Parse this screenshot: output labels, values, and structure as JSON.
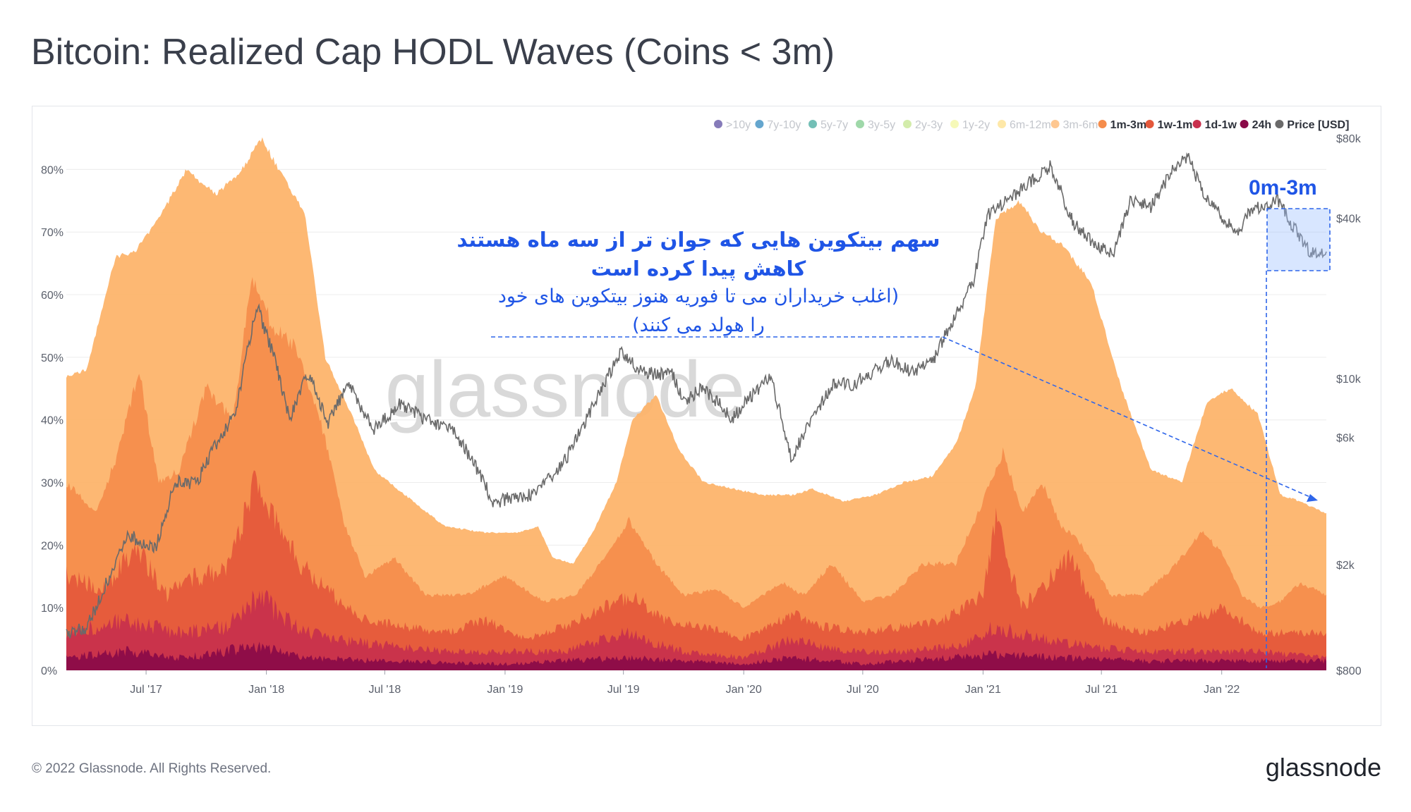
{
  "title": "Bitcoin: Realized Cap HODL Waves (Coins < 3m)",
  "footer": "© 2022 Glassnode. All Rights Reserved.",
  "brand": "glassnode",
  "watermark": "glassnode",
  "legend": [
    {
      "label": ">10y",
      "color": "#5e4fa2",
      "active": false
    },
    {
      "label": "7y-10y",
      "color": "#3288bd",
      "active": false
    },
    {
      "label": "5y-7y",
      "color": "#44a99d",
      "active": false
    },
    {
      "label": "3y-5y",
      "color": "#7fcb8c",
      "active": false
    },
    {
      "label": "2y-3y",
      "color": "#c4e68f",
      "active": false
    },
    {
      "label": "1y-2y",
      "color": "#f3f7a0",
      "active": false
    },
    {
      "label": "6m-12m",
      "color": "#fee08b",
      "active": false
    },
    {
      "label": "3m-6m",
      "color": "#fdb46c",
      "active": false
    },
    {
      "label": "1m-3m",
      "color": "#f58c4b",
      "active": true
    },
    {
      "label": "1w-1m",
      "color": "#e4583b",
      "active": true
    },
    {
      "label": "1d-1w",
      "color": "#c8304d",
      "active": true
    },
    {
      "label": "24h",
      "color": "#8a0a48",
      "active": true
    },
    {
      "label": "Price [USD]",
      "color": "#6a6a6a",
      "active": true
    }
  ],
  "annotation": {
    "box_label": "0m-3m",
    "line1": "سهم بیتکوین هایی که جوان تر از سه ماه هستند",
    "line2": "کاهش پیدا کرده است",
    "line3": "(اغلب خریداران می تا فوریه هنوز بیتکوین های خود",
    "line4": "را هولد می کنند)"
  },
  "chart_data": {
    "type": "area",
    "x_tick_labels": [
      "Jul '17",
      "Jan '18",
      "Jul '18",
      "Jan '19",
      "Jul '19",
      "Jan '20",
      "Jul '20",
      "Jan '21",
      "Jul '21",
      "Jan '22"
    ],
    "x_tick_dates": [
      "2017-07-01",
      "2018-01-01",
      "2018-07-01",
      "2019-01-01",
      "2019-07-01",
      "2020-01-01",
      "2020-07-01",
      "2021-01-01",
      "2021-07-01",
      "2022-01-01"
    ],
    "x_range": [
      "2017-03-01",
      "2022-06-10"
    ],
    "y_left": {
      "ticks": [
        "0%",
        "10%",
        "20%",
        "30%",
        "40%",
        "50%",
        "60%",
        "70%",
        "80%"
      ],
      "range": [
        0,
        85
      ]
    },
    "y_right": {
      "ticks": [
        "$800",
        "$2k",
        "$6k",
        "$10k",
        "$40k",
        "$80k"
      ],
      "tick_values": [
        800,
        2000,
        6000,
        10000,
        40000,
        80000
      ],
      "scale": "log",
      "range": [
        800,
        80000
      ]
    },
    "series": [
      {
        "name": "3m-6m",
        "color": "#fdb46c",
        "dates": [
          "2017-03-01",
          "2017-04-01",
          "2017-05-15",
          "2017-06-15",
          "2017-07-20",
          "2017-09-01",
          "2017-10-15",
          "2017-11-25",
          "2017-12-25",
          "2018-01-25",
          "2018-03-01",
          "2018-04-01",
          "2018-05-15",
          "2018-06-15",
          "2018-08-01",
          "2018-10-01",
          "2018-12-01",
          "2019-01-20",
          "2019-02-20",
          "2019-03-15",
          "2019-04-15",
          "2019-05-15",
          "2019-06-20",
          "2019-07-15",
          "2019-08-20",
          "2019-09-25",
          "2019-11-01",
          "2019-12-15",
          "2020-02-01",
          "2020-03-15",
          "2020-04-15",
          "2020-06-01",
          "2020-07-20",
          "2020-09-01",
          "2020-10-15",
          "2020-11-20",
          "2020-12-20",
          "2021-01-20",
          "2021-02-25",
          "2021-04-01",
          "2021-05-01",
          "2021-06-15",
          "2021-08-01",
          "2021-09-15",
          "2021-11-01",
          "2021-12-10",
          "2022-01-15",
          "2022-02-25",
          "2022-04-01",
          "2022-05-01",
          "2022-06-10"
        ],
        "values": [
          47,
          48,
          66,
          67,
          72,
          80,
          76,
          80,
          85,
          79,
          73,
          50,
          40,
          32,
          28,
          23,
          22,
          22,
          23,
          18,
          17,
          22,
          30,
          40,
          44,
          35,
          30,
          29,
          28,
          28,
          29,
          27,
          28,
          30,
          31,
          36,
          45,
          72,
          75,
          70,
          68,
          62,
          45,
          32,
          30,
          43,
          45,
          41,
          28,
          27,
          25
        ]
      },
      {
        "name": "1m-3m",
        "color": "#f58c4b",
        "dates": [
          "2017-03-01",
          "2017-04-15",
          "2017-05-20",
          "2017-06-20",
          "2017-07-20",
          "2017-08-20",
          "2017-10-01",
          "2017-11-10",
          "2017-12-10",
          "2018-01-10",
          "2018-02-10",
          "2018-03-20",
          "2018-05-01",
          "2018-06-01",
          "2018-07-15",
          "2018-09-01",
          "2018-11-01",
          "2019-01-01",
          "2019-03-01",
          "2019-04-20",
          "2019-06-01",
          "2019-07-10",
          "2019-08-20",
          "2019-10-01",
          "2019-11-20",
          "2020-01-01",
          "2020-03-01",
          "2020-04-01",
          "2020-05-15",
          "2020-07-01",
          "2020-08-15",
          "2020-10-01",
          "2020-11-20",
          "2021-01-05",
          "2021-02-01",
          "2021-03-01",
          "2021-04-01",
          "2021-05-01",
          "2021-06-01",
          "2021-07-15",
          "2021-09-01",
          "2021-10-15",
          "2021-12-01",
          "2022-01-01",
          "2022-02-01",
          "2022-03-01",
          "2022-04-01",
          "2022-05-01",
          "2022-06-10"
        ],
        "values": [
          30,
          25,
          35,
          48,
          30,
          32,
          45,
          40,
          63,
          55,
          52,
          42,
          23,
          15,
          18,
          12,
          12,
          15,
          11,
          12,
          18,
          24,
          17,
          12,
          13,
          10,
          14,
          12,
          17,
          11,
          12,
          17,
          17,
          28,
          35,
          25,
          30,
          23,
          20,
          12,
          12,
          16,
          22,
          19,
          12,
          10,
          11,
          14,
          12
        ]
      },
      {
        "name": "1w-1m",
        "color": "#e4583b",
        "dates": [
          "2017-03-01",
          "2017-05-01",
          "2017-06-15",
          "2017-08-01",
          "2017-09-15",
          "2017-11-01",
          "2017-12-15",
          "2018-01-15",
          "2018-02-15",
          "2018-04-01",
          "2018-06-01",
          "2018-08-01",
          "2018-10-01",
          "2018-12-01",
          "2019-02-01",
          "2019-04-01",
          "2019-06-01",
          "2019-07-15",
          "2019-09-01",
          "2019-11-01",
          "2020-01-01",
          "2020-03-15",
          "2020-05-01",
          "2020-07-01",
          "2020-09-01",
          "2020-11-01",
          "2021-01-01",
          "2021-01-20",
          "2021-03-01",
          "2021-05-15",
          "2021-07-01",
          "2021-09-01",
          "2021-11-15",
          "2022-01-01",
          "2022-03-01",
          "2022-05-01",
          "2022-06-10"
        ],
        "values": [
          15,
          13,
          20,
          12,
          15,
          16,
          30,
          24,
          18,
          13,
          8,
          7,
          6,
          8,
          5,
          7,
          10,
          12,
          8,
          7,
          5,
          9,
          7,
          6,
          7,
          8,
          12,
          24,
          10,
          18,
          8,
          6,
          8,
          10,
          6,
          6,
          6
        ]
      },
      {
        "name": "1d-1w",
        "color": "#c8304d",
        "dates": [
          "2017-03-01",
          "2017-06-01",
          "2017-08-15",
          "2017-11-01",
          "2017-12-20",
          "2018-02-01",
          "2018-04-01",
          "2018-07-01",
          "2018-10-01",
          "2019-01-01",
          "2019-04-01",
          "2019-07-01",
          "2019-10-01",
          "2020-01-01",
          "2020-03-15",
          "2020-06-01",
          "2020-09-01",
          "2020-12-01",
          "2021-01-20",
          "2021-04-01",
          "2021-06-01",
          "2021-09-01",
          "2021-12-01",
          "2022-03-01",
          "2022-06-10"
        ],
        "values": [
          6,
          8,
          6,
          7,
          12,
          8,
          5,
          4,
          3,
          3,
          3,
          6,
          3,
          2,
          5,
          3,
          3,
          4,
          7,
          5,
          4,
          3,
          3,
          3,
          2
        ]
      },
      {
        "name": "24h",
        "color": "#8a0a48",
        "dates": [
          "2017-03-01",
          "2017-06-01",
          "2017-09-01",
          "2017-12-20",
          "2018-03-01",
          "2018-07-01",
          "2019-01-01",
          "2019-07-01",
          "2020-01-01",
          "2020-03-15",
          "2020-07-01",
          "2021-01-15",
          "2021-05-01",
          "2021-09-01",
          "2022-01-01",
          "2022-06-10"
        ],
        "values": [
          2,
          3,
          2,
          4,
          2,
          1.5,
          1,
          2,
          1,
          2,
          1,
          2.5,
          2,
          1.5,
          1.5,
          1.5
        ]
      },
      {
        "name": "Price [USD]",
        "color": "#6a6a6a",
        "axis": "right",
        "dates": [
          "2017-03-01",
          "2017-04-01",
          "2017-05-01",
          "2017-06-01",
          "2017-07-15",
          "2017-08-15",
          "2017-09-15",
          "2017-10-15",
          "2017-11-15",
          "2017-12-17",
          "2018-01-15",
          "2018-02-06",
          "2018-03-05",
          "2018-04-06",
          "2018-05-05",
          "2018-06-15",
          "2018-07-25",
          "2018-09-01",
          "2018-10-15",
          "2018-11-20",
          "2018-12-15",
          "2019-01-15",
          "2019-02-15",
          "2019-04-05",
          "2019-05-15",
          "2019-06-26",
          "2019-08-01",
          "2019-09-15",
          "2019-10-01",
          "2019-11-01",
          "2019-12-15",
          "2020-01-15",
          "2020-02-12",
          "2020-03-13",
          "2020-04-15",
          "2020-05-15",
          "2020-06-15",
          "2020-07-27",
          "2020-08-15",
          "2020-09-15",
          "2020-10-15",
          "2020-11-15",
          "2020-12-17",
          "2021-01-08",
          "2021-02-15",
          "2021-04-14",
          "2021-05-20",
          "2021-06-22",
          "2021-07-21",
          "2021-08-15",
          "2021-09-15",
          "2021-10-20",
          "2021-11-10",
          "2021-12-05",
          "2022-01-24",
          "2022-02-15",
          "2022-03-28",
          "2022-04-15",
          "2022-05-15",
          "2022-06-10"
        ],
        "values": [
          1100,
          1150,
          1700,
          2600,
          2300,
          4100,
          4000,
          5600,
          7500,
          19000,
          11500,
          7000,
          10500,
          6800,
          9600,
          6400,
          8100,
          7000,
          6400,
          4500,
          3400,
          3600,
          3650,
          5000,
          7800,
          12500,
          10500,
          10300,
          8300,
          9200,
          7100,
          8700,
          10200,
          5000,
          7000,
          9500,
          9500,
          11000,
          11800,
          10500,
          11500,
          16500,
          23000,
          41000,
          48000,
          63000,
          38000,
          31500,
          29800,
          47000,
          44000,
          62000,
          68000,
          49000,
          35000,
          43000,
          47000,
          39000,
          30000,
          29500
        ]
      }
    ]
  }
}
